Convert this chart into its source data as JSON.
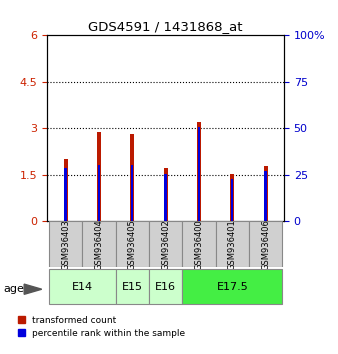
{
  "title": "GDS4591 / 1431868_at",
  "samples": [
    "GSM936403",
    "GSM936404",
    "GSM936405",
    "GSM936402",
    "GSM936400",
    "GSM936401",
    "GSM936406"
  ],
  "red_values": [
    2.0,
    2.88,
    2.82,
    1.72,
    3.22,
    1.52,
    1.78
  ],
  "blue_values": [
    1.72,
    1.82,
    1.82,
    1.52,
    3.05,
    1.38,
    1.62
  ],
  "age_groups": [
    {
      "label": "E14",
      "start": 0,
      "end": 1,
      "color": "#ccffcc"
    },
    {
      "label": "E15",
      "start": 2,
      "end": 2,
      "color": "#ccffcc"
    },
    {
      "label": "E16",
      "start": 3,
      "end": 3,
      "color": "#ccffcc"
    },
    {
      "label": "E17.5",
      "start": 4,
      "end": 6,
      "color": "#44ee44"
    }
  ],
  "left_yticks": [
    0,
    1.5,
    3.0,
    4.5,
    6.0
  ],
  "left_yticklabels": [
    "0",
    "1.5",
    "3",
    "4.5",
    "6"
  ],
  "right_yticks": [
    0,
    25,
    50,
    75,
    100
  ],
  "right_yticklabels": [
    "0",
    "25",
    "50",
    "75",
    "100%"
  ],
  "ylim_left": [
    0,
    6
  ],
  "ylim_right": [
    0,
    100
  ],
  "bar_color_red": "#bb1a00",
  "bar_color_blue": "#0000dd",
  "red_bar_width": 0.12,
  "blue_bar_width": 0.07,
  "grid_yticks": [
    1.5,
    3.0,
    4.5
  ],
  "legend_red": "transformed count",
  "legend_blue": "percentile rank within the sample",
  "age_label": "age",
  "sample_box_color": "#d0d0d0",
  "light_green": "#ccffcc",
  "dark_green": "#44ee44"
}
